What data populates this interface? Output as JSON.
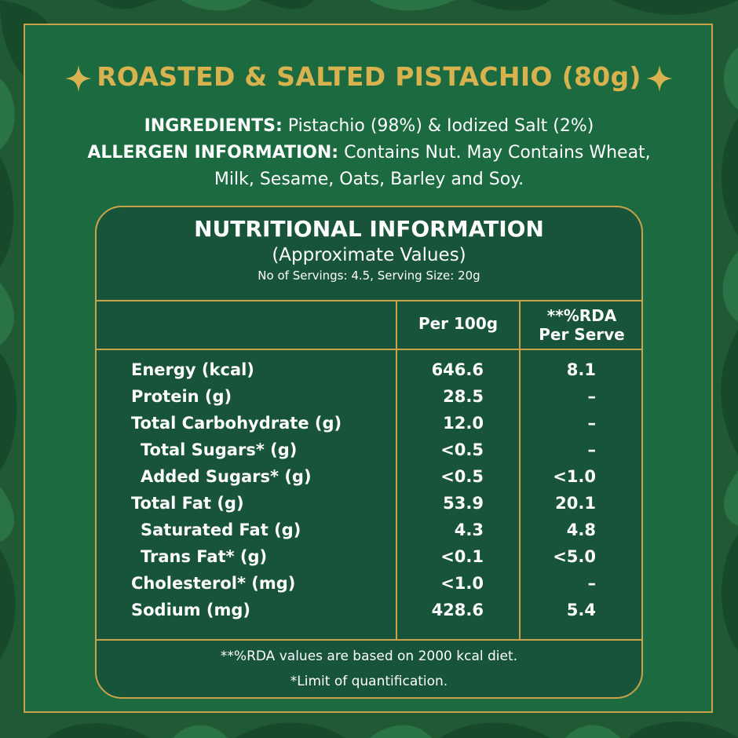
{
  "colors": {
    "background": "#1f5a34",
    "panel": "#1c6a3f",
    "card": "#17543a",
    "gold": "#c9a34a",
    "title_gold": "#d8b24e",
    "text": "#ffffff"
  },
  "title": "ROASTED & SALTED PISTACHIO (80g)",
  "ingredients": {
    "label": "INGREDIENTS:",
    "text": "Pistachio (98%) & Iodized Salt (2%)"
  },
  "allergen": {
    "label": "ALLERGEN INFORMATION:",
    "line1": "Contains Nut. May Contains Wheat,",
    "line2": "Milk, Sesame, Oats, Barley and Soy."
  },
  "nutrition": {
    "title": "NUTRITIONAL INFORMATION",
    "subtitle": "(Approximate Values)",
    "servings": "No of Servings: 4.5, Serving Size: 20g",
    "col_per100": "Per 100g",
    "col_rda_1": "**%RDA",
    "col_rda_2": "Per Serve",
    "rows": [
      {
        "name": "Energy (kcal)",
        "per100": "646.6",
        "rda": "8.1"
      },
      {
        "name": "Protein (g)",
        "per100": "28.5",
        "rda": "–"
      },
      {
        "name": "Total Carbohydrate (g)",
        "per100": "12.0",
        "rda": "–"
      },
      {
        "name": "Total Sugars* (g)",
        "per100": "<0.5",
        "rda": "–"
      },
      {
        "name": "Added Sugars* (g)",
        "per100": "<0.5",
        "rda": "<1.0"
      },
      {
        "name": "Total Fat (g)",
        "per100": "53.9",
        "rda": "20.1"
      },
      {
        "name": "Saturated Fat (g)",
        "per100": "4.3",
        "rda": "4.8"
      },
      {
        "name": "Trans Fat* (g)",
        "per100": "<0.1",
        "rda": "<5.0"
      },
      {
        "name": "Cholesterol* (mg)",
        "per100": "<1.0",
        "rda": "–"
      },
      {
        "name": "Sodium (mg)",
        "per100": "428.6",
        "rda": "5.4"
      }
    ],
    "footnote1": "**%RDA values are based on 2000 kcal diet.",
    "footnote2": "*Limit of quantification."
  }
}
